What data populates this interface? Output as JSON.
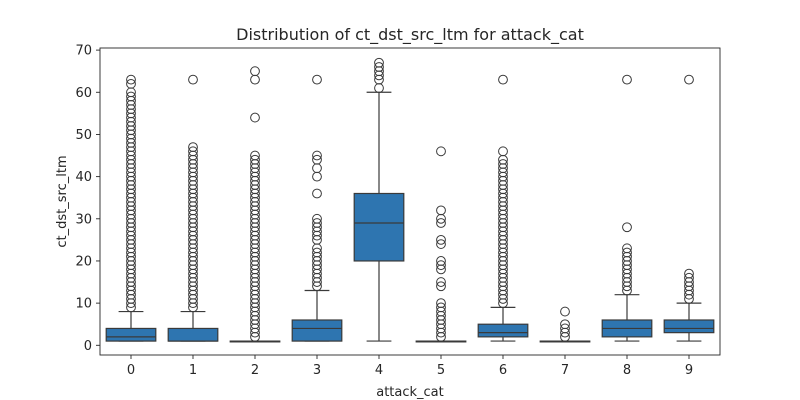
{
  "chart_data": {
    "type": "box",
    "title": "Distribution of ct_dst_src_ltm for attack_cat",
    "xlabel": "attack_cat",
    "ylabel": "ct_dst_src_ltm",
    "ylim": [
      -2.3,
      70.5
    ],
    "yticks": [
      0,
      10,
      20,
      30,
      40,
      50,
      60,
      70
    ],
    "categories": [
      "0",
      "1",
      "2",
      "3",
      "4",
      "5",
      "6",
      "7",
      "8",
      "9"
    ],
    "color": "#2e75b0",
    "edge_color": "#3a3a3a",
    "grid": false,
    "legend": "none",
    "boxes": [
      {
        "category": "0",
        "q1": 1,
        "median": 2,
        "q3": 4,
        "whisker_low": 1,
        "whisker_high": 8,
        "outliers": [
          9,
          10,
          11,
          12,
          13,
          14,
          15,
          16,
          17,
          18,
          19,
          20,
          21,
          22,
          23,
          24,
          25,
          26,
          27,
          28,
          29,
          30,
          31,
          32,
          33,
          34,
          35,
          36,
          37,
          38,
          39,
          40,
          41,
          42,
          43,
          44,
          45,
          46,
          47,
          48,
          49,
          50,
          51,
          52,
          53,
          54,
          55,
          56,
          57,
          58,
          59,
          60,
          62,
          63
        ]
      },
      {
        "category": "1",
        "q1": 1,
        "median": 1,
        "q3": 4,
        "whisker_low": 1,
        "whisker_high": 8,
        "outliers": [
          9,
          10,
          11,
          12,
          13,
          14,
          15,
          16,
          17,
          18,
          19,
          20,
          21,
          22,
          23,
          24,
          25,
          26,
          27,
          28,
          29,
          30,
          31,
          32,
          33,
          34,
          35,
          36,
          37,
          38,
          39,
          40,
          41,
          42,
          43,
          44,
          45,
          46,
          47,
          63
        ]
      },
      {
        "category": "2",
        "q1": 1,
        "median": 1,
        "q3": 1,
        "whisker_low": 1,
        "whisker_high": 1,
        "outliers": [
          2,
          3,
          4,
          5,
          6,
          7,
          8,
          9,
          10,
          11,
          12,
          13,
          14,
          15,
          16,
          17,
          18,
          19,
          20,
          21,
          22,
          23,
          24,
          25,
          26,
          27,
          28,
          29,
          30,
          31,
          32,
          33,
          34,
          35,
          36,
          37,
          38,
          39,
          40,
          41,
          42,
          43,
          44,
          45,
          54,
          63,
          65
        ]
      },
      {
        "category": "3",
        "q1": 1,
        "median": 4,
        "q3": 6,
        "whisker_low": 1,
        "whisker_high": 13,
        "outliers": [
          14,
          15,
          16,
          17,
          18,
          19,
          20,
          21,
          22,
          23,
          25,
          26,
          27,
          28,
          29,
          30,
          36,
          40,
          42,
          44,
          45,
          63
        ]
      },
      {
        "category": "4",
        "q1": 20,
        "median": 29,
        "q3": 36,
        "whisker_low": 1,
        "whisker_high": 60,
        "outliers": [
          61,
          63,
          64,
          65,
          66,
          67
        ]
      },
      {
        "category": "5",
        "q1": 1,
        "median": 1,
        "q3": 1,
        "whisker_low": 1,
        "whisker_high": 1,
        "outliers": [
          2,
          3,
          4,
          5,
          6,
          7,
          8,
          9,
          10,
          14,
          15,
          18,
          19,
          20,
          24,
          25,
          29,
          30,
          32,
          46
        ]
      },
      {
        "category": "6",
        "q1": 2,
        "median": 3,
        "q3": 5,
        "whisker_low": 1,
        "whisker_high": 9,
        "outliers": [
          10,
          11,
          12,
          13,
          14,
          15,
          16,
          17,
          18,
          19,
          20,
          21,
          22,
          23,
          24,
          25,
          26,
          27,
          28,
          29,
          30,
          31,
          32,
          33,
          34,
          35,
          36,
          37,
          38,
          39,
          40,
          41,
          42,
          43,
          44,
          46,
          63
        ]
      },
      {
        "category": "7",
        "q1": 1,
        "median": 1,
        "q3": 1,
        "whisker_low": 1,
        "whisker_high": 1,
        "outliers": [
          2,
          3,
          4,
          5,
          8
        ]
      },
      {
        "category": "8",
        "q1": 2,
        "median": 4,
        "q3": 6,
        "whisker_low": 1,
        "whisker_high": 12,
        "outliers": [
          13,
          14,
          15,
          16,
          17,
          18,
          19,
          20,
          21,
          22,
          23,
          28,
          63
        ]
      },
      {
        "category": "9",
        "q1": 3,
        "median": 4,
        "q3": 6,
        "whisker_low": 1,
        "whisker_high": 10,
        "outliers": [
          11,
          12,
          13,
          14,
          15,
          16,
          17,
          63
        ]
      }
    ]
  }
}
